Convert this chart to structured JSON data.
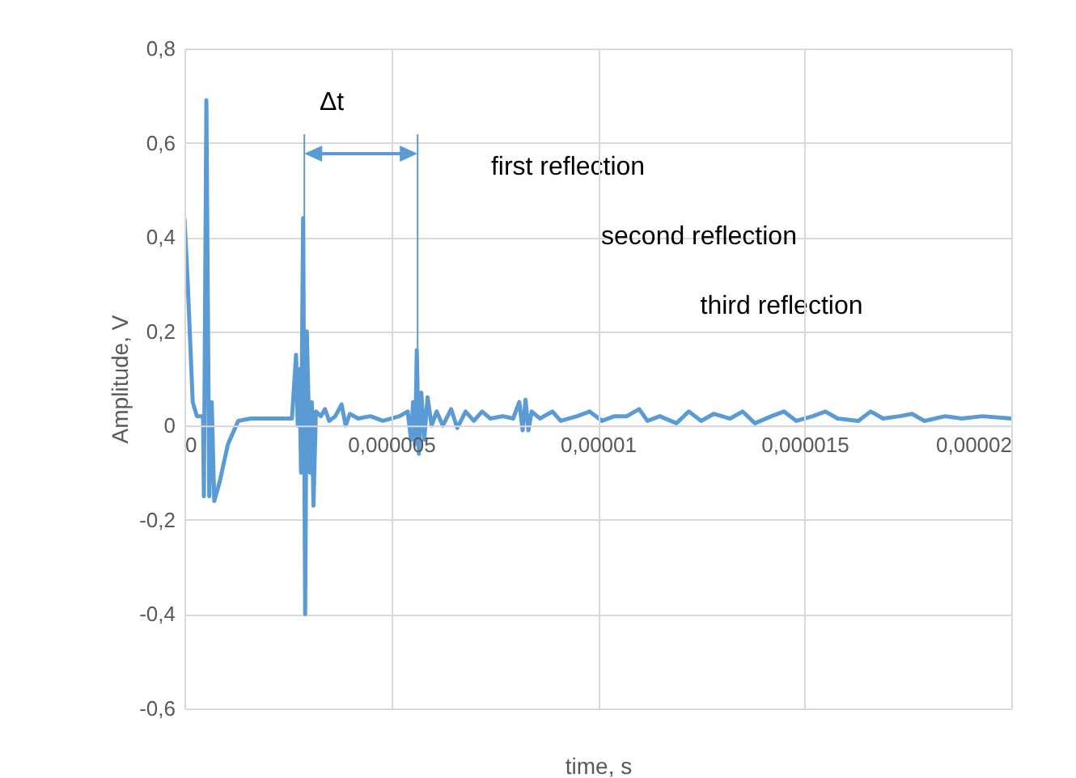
{
  "chart_data": {
    "type": "line",
    "xlabel": "time, s",
    "ylabel": "Amplitude, V",
    "x": [
      0,
      8e-08,
      2e-07,
      3e-07,
      4.5e-07,
      4.7e-07,
      5.3e-07,
      6e-07,
      6.6e-07,
      7.2e-07,
      8.5e-07,
      1.05e-06,
      1.3e-06,
      1.6e-06,
      2.6e-06,
      2.7e-06,
      2.74e-06,
      2.78e-06,
      2.82e-06,
      2.87e-06,
      2.92e-06,
      2.96e-06,
      3e-06,
      3.04e-06,
      3.08e-06,
      3.12e-06,
      3.18e-06,
      3.3e-06,
      3.4e-06,
      3.5e-06,
      3.65e-06,
      3.8e-06,
      3.9e-06,
      4e-06,
      4.2e-06,
      4.5e-06,
      4.8e-06,
      5.2e-06,
      5.4e-06,
      5.48e-06,
      5.53e-06,
      5.58e-06,
      5.62e-06,
      5.67e-06,
      5.73e-06,
      5.8e-06,
      5.88e-06,
      5.98e-06,
      6.1e-06,
      6.25e-06,
      6.45e-06,
      6.6e-06,
      6.8e-06,
      7e-06,
      7.2e-06,
      7.4e-06,
      7.7e-06,
      7.95e-06,
      8.1e-06,
      8.18e-06,
      8.25e-06,
      8.32e-06,
      8.4e-06,
      8.6e-06,
      8.9e-06,
      9.1e-06,
      9.5e-06,
      9.8e-06,
      1.01e-05,
      1.04e-05,
      1.07e-05,
      1.1e-05,
      1.12e-05,
      1.15e-05,
      1.19e-05,
      1.22e-05,
      1.25e-05,
      1.28e-05,
      1.32e-05,
      1.35e-05,
      1.38e-05,
      1.42e-05,
      1.45e-05,
      1.48e-05,
      1.52e-05,
      1.55e-05,
      1.58e-05,
      1.63e-05,
      1.66e-05,
      1.69e-05,
      1.73e-05,
      1.76e-05,
      1.79e-05,
      1.84e-05,
      1.88e-05,
      1.93e-05,
      2e-05
    ],
    "series": [
      {
        "color": "#5b9bd5",
        "values": [
          0.44,
          0.3,
          0.05,
          0.02,
          0.02,
          -0.15,
          0.69,
          -0.15,
          0.05,
          -0.16,
          -0.12,
          -0.04,
          0.01,
          0.015,
          0.015,
          0.15,
          0.0,
          0.12,
          -0.1,
          0.44,
          -0.4,
          0.2,
          0.05,
          -0.1,
          0.05,
          -0.17,
          0.03,
          0.02,
          0.035,
          0.01,
          0.02,
          0.045,
          0.0,
          0.025,
          0.015,
          0.02,
          0.01,
          0.02,
          0.03,
          -0.03,
          0.05,
          -0.04,
          0.16,
          -0.06,
          0.07,
          -0.03,
          0.06,
          0.0,
          0.03,
          0.0,
          0.035,
          -0.005,
          0.03,
          0.01,
          0.03,
          0.015,
          0.02,
          0.015,
          0.05,
          -0.01,
          0.055,
          -0.01,
          0.03,
          0.015,
          0.03,
          0.01,
          0.02,
          0.03,
          0.01,
          0.02,
          0.02,
          0.035,
          0.01,
          0.02,
          0.005,
          0.03,
          0.01,
          0.025,
          0.015,
          0.03,
          0.005,
          0.02,
          0.03,
          0.01,
          0.02,
          0.03,
          0.015,
          0.01,
          0.03,
          0.015,
          0.02,
          0.025,
          0.01,
          0.02,
          0.015,
          0.02,
          0.015
        ]
      }
    ],
    "xlim": [
      0,
      2e-05
    ],
    "xticks": [
      0,
      {
        "value": 5e-06,
        "label": "0,000005"
      },
      {
        "value": 1e-05,
        "label": "0,00001"
      },
      {
        "value": 1.5e-05,
        "label": "0,000015"
      },
      {
        "value": 2e-05,
        "label": "0,00002"
      }
    ],
    "ylim": [
      -0.6,
      0.8
    ],
    "yticks": [
      {
        "value": -0.6,
        "label": "-0,6"
      },
      {
        "value": -0.4,
        "label": "-0,4"
      },
      {
        "value": -0.2,
        "label": "-0,2"
      },
      0,
      {
        "value": 0.2,
        "label": "0,2"
      },
      {
        "value": 0.4,
        "label": "0,4"
      },
      {
        "value": 0.6,
        "label": "0,6"
      },
      {
        "value": 0.8,
        "label": "0,8"
      }
    ],
    "grid": true,
    "marker": "none",
    "line_style": "solid",
    "ref_lines": [
      {
        "axis": "x",
        "value": 2.9e-06,
        "color": "#5b9bd5"
      },
      {
        "axis": "x",
        "value": 5.64e-06,
        "color": "#5b9bd5"
      }
    ],
    "annotations": [
      "Δt",
      "first  reflection",
      "second  reflection",
      "third  reflection"
    ]
  }
}
